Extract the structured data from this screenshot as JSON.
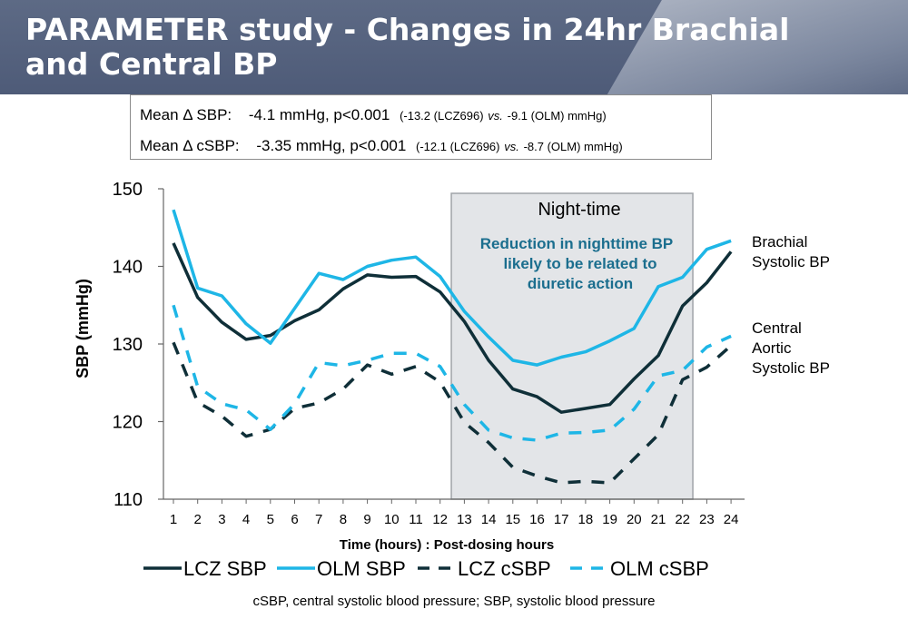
{
  "slide": {
    "title": "PARAMETER study - Changes in 24hr Brachial and Central BP",
    "footnote": "cSBP, central systolic blood pressure; SBP, systolic blood pressure"
  },
  "summary": {
    "line1": {
      "label": "Mean Δ SBP:",
      "value": "-4.1 mmHg, p<0.001",
      "detail_a": "(-13.2 (LCZ696)",
      "vs": "vs.",
      "detail_b": "-9.1 (OLM) mmHg)"
    },
    "line2": {
      "label": "Mean Δ cSBP:",
      "value": "-3.35 mmHg, p<0.001",
      "detail_a": "(-12.1 (LCZ696)",
      "vs": "vs.",
      "detail_b": "-8.7 (OLM) mmHg)"
    }
  },
  "colors": {
    "dark": "#0f2f38",
    "light": "#1eb6e6",
    "shade": "#e3e5e8",
    "shade_border": "#a0a4a8",
    "annotation": "#1b6e8e"
  },
  "chart_data": {
    "type": "line",
    "title": "",
    "xlabel": "Time (hours) : Post-dosing hours",
    "ylabel": "SBP (mmHg)",
    "ylim": [
      110,
      150
    ],
    "yticks": [
      110,
      120,
      130,
      140,
      150
    ],
    "xlim": [
      1,
      24
    ],
    "x": [
      1,
      2,
      3,
      4,
      5,
      6,
      7,
      8,
      9,
      10,
      11,
      12,
      13,
      14,
      15,
      16,
      17,
      18,
      19,
      20,
      21,
      22,
      23,
      24
    ],
    "series": [
      {
        "name": "LCZ SBP",
        "style": "solid",
        "color": "#0f2f38",
        "values": [
          143,
          136,
          132.8,
          130.6,
          131.1,
          133,
          134.4,
          137.1,
          138.9,
          138.6,
          138.7,
          136.7,
          132.9,
          127.9,
          124.2,
          123.2,
          121.2,
          121.7,
          122.2,
          125.5,
          128.5,
          134.9,
          137.9,
          141.9
        ]
      },
      {
        "name": "OLM SBP",
        "style": "solid",
        "color": "#1eb6e6",
        "values": [
          147.3,
          137.2,
          136.2,
          132.6,
          130.1,
          134.6,
          139.1,
          138.3,
          140,
          140.8,
          141.2,
          138.7,
          134.2,
          130.9,
          127.9,
          127.3,
          128.3,
          129,
          130.4,
          132,
          137.4,
          138.6,
          142.2,
          143.3
        ]
      },
      {
        "name": "LCZ cSBP",
        "style": "dashed",
        "color": "#0f2f38",
        "values": [
          130.2,
          122.5,
          120.7,
          118.1,
          119,
          121.7,
          122.4,
          124.2,
          127.3,
          126.1,
          127.1,
          125.1,
          119.9,
          117.3,
          114.1,
          113,
          112.1,
          112.3,
          112.1,
          115.2,
          118.3,
          125.4,
          127,
          129.8
        ]
      },
      {
        "name": "OLM cSBP",
        "style": "dashed",
        "color": "#1eb6e6",
        "values": [
          135,
          124.5,
          122.3,
          121.5,
          119,
          122.3,
          127.6,
          127.2,
          127.9,
          128.8,
          128.8,
          127.1,
          122.2,
          118.9,
          117.9,
          117.6,
          118.5,
          118.6,
          118.9,
          121.6,
          125.9,
          126.6,
          129.6,
          131
        ]
      }
    ],
    "shaded_region": {
      "from_hour": 12.5,
      "to_hour": 22.5,
      "label": "Night-time",
      "annotation": [
        "Reduction in nighttime BP",
        "likely to be related to",
        "diuretic action"
      ]
    },
    "right_labels": [
      [
        "Brachial",
        "Systolic BP"
      ],
      [
        "Central",
        "Aortic",
        "Systolic BP"
      ]
    ],
    "legend_position": "bottom"
  }
}
